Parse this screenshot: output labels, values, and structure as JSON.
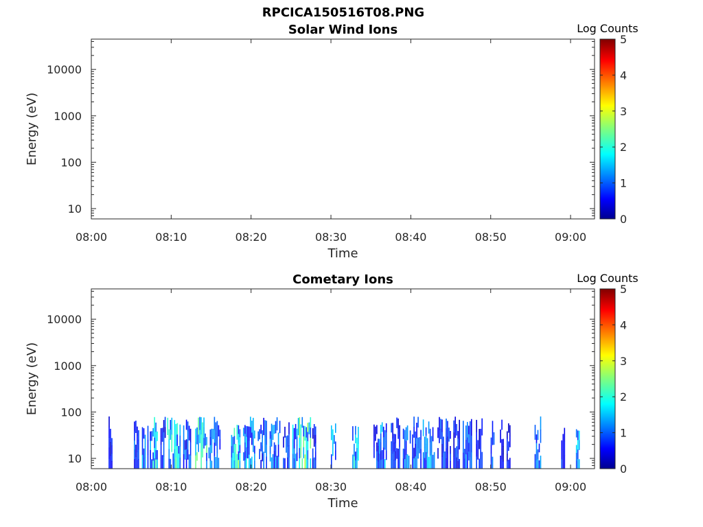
{
  "figure_title": "RPCICA150516T08.PNG",
  "colormap": "jet",
  "chart_data": [
    {
      "type": "heatmap",
      "title": "Solar Wind Ions",
      "xlabel": "Time",
      "ylabel": "Energy (eV)",
      "x_range": [
        "08:00",
        "09:03"
      ],
      "x_ticks": [
        "08:00",
        "08:10",
        "08:20",
        "08:30",
        "08:40",
        "08:50",
        "09:00"
      ],
      "y_scale": "log",
      "y_range": [
        6,
        45000
      ],
      "y_ticks": [
        "10",
        "100",
        "1000",
        "10000"
      ],
      "colorbar": {
        "label": "Log Counts",
        "range": [
          0,
          5
        ],
        "ticks": [
          "0",
          "1",
          "2",
          "3",
          "4",
          "5"
        ]
      },
      "bursts": []
    },
    {
      "type": "heatmap",
      "title": "Cometary Ions",
      "xlabel": "Time",
      "ylabel": "Energy (eV)",
      "x_range": [
        "08:00",
        "09:03"
      ],
      "x_ticks": [
        "08:00",
        "08:10",
        "08:20",
        "08:30",
        "08:40",
        "08:50",
        "09:00"
      ],
      "y_scale": "log",
      "y_range": [
        6,
        45000
      ],
      "y_ticks": [
        "10",
        "100",
        "1000",
        "10000"
      ],
      "colorbar": {
        "label": "Log Counts",
        "range": [
          0,
          5
        ],
        "ticks": [
          "0",
          "1",
          "2",
          "3",
          "4",
          "5"
        ]
      },
      "energy_max_observed_eV": 80,
      "bursts": [
        {
          "t_start": "08:02:10",
          "t_end": "08:02:40",
          "level": 0.7
        },
        {
          "t_start": "08:05:20",
          "t_end": "08:06:00",
          "level": 1.0
        },
        {
          "t_start": "08:06:20",
          "t_end": "08:07:10",
          "level": 1.2
        },
        {
          "t_start": "08:07:20",
          "t_end": "08:08:20",
          "level": 1.6
        },
        {
          "t_start": "08:08:40",
          "t_end": "08:09:20",
          "level": 0.9
        },
        {
          "t_start": "08:09:30",
          "t_end": "08:11:10",
          "level": 1.7
        },
        {
          "t_start": "08:11:30",
          "t_end": "08:12:30",
          "level": 1.1
        },
        {
          "t_start": "08:13:00",
          "t_end": "08:14:30",
          "level": 2.0
        },
        {
          "t_start": "08:14:40",
          "t_end": "08:16:10",
          "level": 1.2
        },
        {
          "t_start": "08:17:30",
          "t_end": "08:18:40",
          "level": 1.9
        },
        {
          "t_start": "08:19:00",
          "t_end": "08:20:30",
          "level": 1.4
        },
        {
          "t_start": "08:20:50",
          "t_end": "08:22:00",
          "level": 1.1
        },
        {
          "t_start": "08:22:20",
          "t_end": "08:23:40",
          "level": 1.2
        },
        {
          "t_start": "08:24:00",
          "t_end": "08:24:50",
          "level": 0.9
        },
        {
          "t_start": "08:25:10",
          "t_end": "08:26:00",
          "level": 1.5
        },
        {
          "t_start": "08:26:00",
          "t_end": "08:27:30",
          "level": 2.1
        },
        {
          "t_start": "08:27:40",
          "t_end": "08:28:10",
          "level": 0.8
        },
        {
          "t_start": "08:30:00",
          "t_end": "08:30:40",
          "level": 1.5
        },
        {
          "t_start": "08:32:40",
          "t_end": "08:33:30",
          "level": 1.6
        },
        {
          "t_start": "08:35:20",
          "t_end": "08:36:00",
          "level": 0.9
        },
        {
          "t_start": "08:36:00",
          "t_end": "08:37:00",
          "level": 1.3
        },
        {
          "t_start": "08:37:30",
          "t_end": "08:38:40",
          "level": 0.8
        },
        {
          "t_start": "08:39:00",
          "t_end": "08:40:00",
          "level": 1.1
        },
        {
          "t_start": "08:40:10",
          "t_end": "08:41:20",
          "level": 1.0
        },
        {
          "t_start": "08:41:30",
          "t_end": "08:43:00",
          "level": 1.2
        },
        {
          "t_start": "08:43:20",
          "t_end": "08:45:00",
          "level": 0.9
        },
        {
          "t_start": "08:45:20",
          "t_end": "08:46:10",
          "level": 0.8
        },
        {
          "t_start": "08:46:30",
          "t_end": "08:47:40",
          "level": 1.0
        },
        {
          "t_start": "08:48:10",
          "t_end": "08:49:00",
          "level": 0.7
        },
        {
          "t_start": "08:50:00",
          "t_end": "08:50:30",
          "level": 0.9
        },
        {
          "t_start": "08:51:10",
          "t_end": "08:51:40",
          "level": 0.6
        },
        {
          "t_start": "08:52:00",
          "t_end": "08:52:30",
          "level": 0.7
        },
        {
          "t_start": "08:55:30",
          "t_end": "08:56:20",
          "level": 1.1
        },
        {
          "t_start": "08:58:50",
          "t_end": "08:59:20",
          "level": 0.8
        },
        {
          "t_start": "09:00:40",
          "t_end": "09:01:10",
          "level": 1.5
        }
      ]
    }
  ]
}
